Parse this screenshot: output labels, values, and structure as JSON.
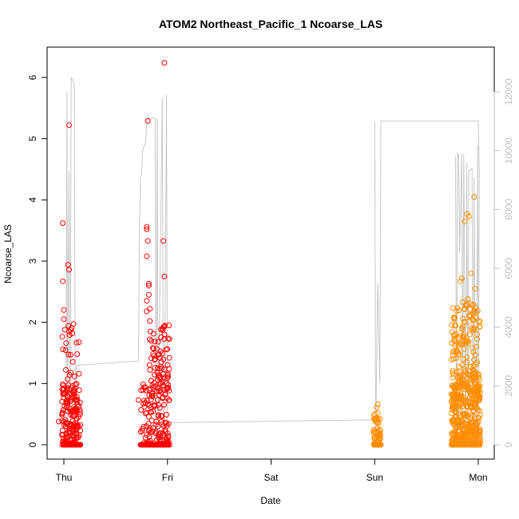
{
  "chart_data": {
    "type": "scatter",
    "title": "ATOM2 Northeast_Pacific_1 Ncoarse_LAS",
    "xlabel": "Date",
    "ylabel": "Ncoarse_LAS",
    "x_ticks": [
      "Thu",
      "Fri",
      "Sat",
      "Sun",
      "Mon"
    ],
    "xlim": [
      0,
      4.1
    ],
    "ylim": [
      0,
      6.4
    ],
    "y_ticks": [
      0,
      1,
      2,
      3,
      4,
      5,
      6
    ],
    "y2_ticks": [
      0,
      2000,
      4000,
      6000,
      8000,
      10000,
      12000
    ],
    "y2lim": [
      0,
      13000
    ],
    "grid": false,
    "legend": "none",
    "colors": {
      "red_series": "#ff0000",
      "orange_series": "#ff8c00",
      "altitude_line": "#c8c8c8",
      "right_axis": "#c0c0c0"
    },
    "series": [
      {
        "color": "red",
        "clusters": [
          {
            "x_start": -0.02,
            "x_end": 0.16,
            "n_zero": 60,
            "n_low": 140,
            "low_max": 1.0,
            "n_mid": 40,
            "mid_max": 2.0
          }
        ],
        "outliers": [
          {
            "x": -0.01,
            "y": 3.62
          },
          {
            "x": 0.05,
            "y": 5.22
          },
          {
            "x": 0.04,
            "y": 2.94
          },
          {
            "x": 0.05,
            "y": 2.86
          },
          {
            "x": -0.01,
            "y": 2.67
          },
          {
            "x": 0.0,
            "y": 2.2
          },
          {
            "x": 0.0,
            "y": 2.05
          },
          {
            "x": 0.01,
            "y": 1.88
          },
          {
            "x": 0.05,
            "y": 1.85
          },
          {
            "x": 0.12,
            "y": 0.73
          },
          {
            "x": 0.12,
            "y": 0.43
          },
          {
            "x": -0.05,
            "y": 0.38
          }
        ]
      },
      {
        "color": "red",
        "clusters": [
          {
            "x_start": 0.74,
            "x_end": 0.82,
            "n_zero": 40,
            "n_low": 20,
            "low_max": 1.0,
            "n_mid": 10,
            "mid_max": 1.0
          },
          {
            "x_start": 0.82,
            "x_end": 1.02,
            "n_zero": 60,
            "n_low": 120,
            "low_max": 1.5,
            "n_mid": 50,
            "mid_max": 2.0
          }
        ],
        "outliers": [
          {
            "x": 0.81,
            "y": 5.29
          },
          {
            "x": 0.8,
            "y": 3.56
          },
          {
            "x": 0.8,
            "y": 3.52
          },
          {
            "x": 0.81,
            "y": 3.33
          },
          {
            "x": 0.8,
            "y": 3.08
          },
          {
            "x": 0.82,
            "y": 2.63
          },
          {
            "x": 0.82,
            "y": 2.6
          },
          {
            "x": 0.82,
            "y": 2.45
          },
          {
            "x": 0.8,
            "y": 2.35
          },
          {
            "x": 0.83,
            "y": 2.22
          },
          {
            "x": 0.8,
            "y": 2.18
          },
          {
            "x": 0.83,
            "y": 2.02
          },
          {
            "x": 0.97,
            "y": 6.24
          },
          {
            "x": 0.96,
            "y": 3.33
          },
          {
            "x": 0.97,
            "y": 2.75
          },
          {
            "x": 0.97,
            "y": 1.93
          },
          {
            "x": 0.97,
            "y": 1.8
          },
          {
            "x": 0.91,
            "y": 1.47
          },
          {
            "x": 0.88,
            "y": 1.4
          },
          {
            "x": 0.72,
            "y": 0.73
          }
        ]
      },
      {
        "color": "orange",
        "clusters": [
          {
            "x_start": 2.99,
            "x_end": 3.06,
            "n_zero": 50,
            "n_low": 50,
            "low_max": 0.55,
            "n_mid": 0,
            "mid_max": 0.6
          },
          {
            "x_start": 3.74,
            "x_end": 4.02,
            "n_zero": 120,
            "n_low": 380,
            "low_max": 1.2,
            "n_mid": 160,
            "mid_max": 2.3
          }
        ],
        "outliers": [
          {
            "x": 3.89,
            "y": 3.77
          },
          {
            "x": 3.91,
            "y": 3.73
          },
          {
            "x": 3.96,
            "y": 4.05
          },
          {
            "x": 3.87,
            "y": 3.65
          },
          {
            "x": 3.84,
            "y": 2.72
          },
          {
            "x": 3.83,
            "y": 2.67
          },
          {
            "x": 3.93,
            "y": 2.8
          },
          {
            "x": 3.97,
            "y": 2.55
          },
          {
            "x": 3.9,
            "y": 2.38
          },
          {
            "x": 3.85,
            "y": 2.33
          },
          {
            "x": 3.96,
            "y": 2.18
          },
          {
            "x": 3.92,
            "y": 2.12
          },
          {
            "x": 3.03,
            "y": 0.66
          },
          {
            "x": 3.02,
            "y": 0.61
          }
        ]
      }
    ],
    "altitude_line": [
      [
        0.02,
        0
      ],
      [
        0.03,
        12000
      ],
      [
        0.035,
        400
      ],
      [
        0.05,
        9300
      ],
      [
        0.06,
        200
      ],
      [
        0.07,
        12500
      ],
      [
        0.1,
        12300
      ],
      [
        0.11,
        800
      ],
      [
        0.12,
        2700
      ],
      [
        0.72,
        2850
      ],
      [
        0.73,
        7500
      ],
      [
        0.74,
        9100
      ],
      [
        0.75,
        9200
      ],
      [
        0.76,
        10000
      ],
      [
        0.79,
        10300
      ],
      [
        0.8,
        11000
      ],
      [
        0.83,
        11100
      ],
      [
        0.88,
        11100
      ],
      [
        0.89,
        200
      ],
      [
        0.9,
        11100
      ],
      [
        0.91,
        500
      ],
      [
        0.95,
        11800
      ],
      [
        0.96,
        800
      ],
      [
        0.97,
        200
      ],
      [
        0.99,
        11900
      ],
      [
        1.0,
        200
      ],
      [
        1.0,
        750
      ],
      [
        3.01,
        850
      ],
      [
        3.0,
        11000
      ],
      [
        3.01,
        300
      ],
      [
        3.03,
        5500
      ],
      [
        3.05,
        2100
      ],
      [
        3.06,
        11000
      ],
      [
        4.0,
        11000
      ],
      [
        4.01,
        9300
      ],
      [
        4.0,
        200
      ],
      [
        3.995,
        10200
      ],
      [
        3.98,
        200
      ],
      [
        3.97,
        300
      ],
      [
        3.96,
        9100
      ],
      [
        3.95,
        400
      ],
      [
        3.94,
        9400
      ],
      [
        3.91,
        9300
      ],
      [
        3.9,
        300
      ],
      [
        3.89,
        9600
      ],
      [
        3.88,
        200
      ],
      [
        3.86,
        9900
      ],
      [
        3.85,
        300
      ],
      [
        3.84,
        9900
      ],
      [
        3.82,
        6500
      ],
      [
        3.81,
        9900
      ],
      [
        3.8,
        9900
      ],
      [
        3.79,
        200
      ],
      [
        3.78,
        9800
      ]
    ]
  }
}
